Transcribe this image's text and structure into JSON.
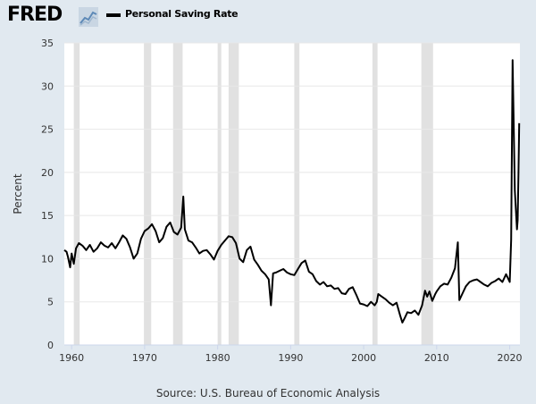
{
  "header": {
    "logo_text": "FRED",
    "logo_icon": "line-chart-icon",
    "legend_label": "Personal Saving Rate"
  },
  "footer": {
    "source": "Source: U.S. Bureau of Economic Analysis"
  },
  "colors": {
    "page_background": "#e1e9f0",
    "plot_background": "#ffffff",
    "recession_shade": "#e1e1e1",
    "series": "#000000",
    "grid": "#e8e8e8"
  },
  "chart_data": {
    "type": "line",
    "title": "",
    "xlabel": "",
    "ylabel": "Percent",
    "xlim": [
      1959.0,
      2021.4
    ],
    "ylim": [
      0,
      35
    ],
    "x_ticks": [
      1960,
      1970,
      1980,
      1990,
      2000,
      2010,
      2020
    ],
    "x_tick_labels": [
      "1960",
      "1970",
      "1980",
      "1990",
      "2000",
      "2010",
      "2020"
    ],
    "y_ticks": [
      0,
      5,
      10,
      15,
      20,
      25,
      30,
      35
    ],
    "y_tick_labels": [
      "0",
      "5",
      "10",
      "15",
      "20",
      "25",
      "30",
      "35"
    ],
    "grid": "horizontal",
    "legend": "top-left",
    "recessions": [
      [
        1960.3,
        1961.1
      ],
      [
        1969.9,
        1970.9
      ],
      [
        1973.9,
        1975.2
      ],
      [
        1980.0,
        1980.5
      ],
      [
        1981.5,
        1982.9
      ],
      [
        1990.5,
        1991.2
      ],
      [
        2001.2,
        2001.9
      ],
      [
        2007.9,
        2009.5
      ]
    ],
    "series": [
      {
        "name": "Personal Saving Rate",
        "x": [
          1959.0,
          1959.3,
          1959.5,
          1959.8,
          1960.0,
          1960.3,
          1960.6,
          1961.0,
          1961.5,
          1962.0,
          1962.5,
          1963.0,
          1963.5,
          1964.0,
          1964.5,
          1965.0,
          1965.5,
          1966.0,
          1966.5,
          1967.0,
          1967.5,
          1968.0,
          1968.5,
          1969.0,
          1969.5,
          1970.0,
          1970.5,
          1971.0,
          1971.5,
          1972.0,
          1972.5,
          1973.0,
          1973.5,
          1974.0,
          1974.5,
          1975.0,
          1975.3,
          1975.5,
          1976.0,
          1976.5,
          1977.0,
          1977.5,
          1978.0,
          1978.5,
          1979.0,
          1979.5,
          1980.0,
          1980.5,
          1981.0,
          1981.5,
          1982.0,
          1982.5,
          1983.0,
          1983.5,
          1984.0,
          1984.5,
          1985.0,
          1985.5,
          1986.0,
          1986.5,
          1987.0,
          1987.3,
          1987.6,
          1988.0,
          1988.5,
          1989.0,
          1989.5,
          1990.0,
          1990.5,
          1991.0,
          1991.5,
          1992.0,
          1992.5,
          1993.0,
          1993.5,
          1994.0,
          1994.5,
          1995.0,
          1995.5,
          1996.0,
          1996.5,
          1997.0,
          1997.5,
          1998.0,
          1998.5,
          1999.0,
          1999.5,
          2000.0,
          2000.5,
          2001.0,
          2001.5,
          2001.8,
          2002.0,
          2002.5,
          2003.0,
          2003.5,
          2004.0,
          2004.5,
          2005.0,
          2005.3,
          2005.6,
          2006.0,
          2006.5,
          2007.0,
          2007.5,
          2008.0,
          2008.4,
          2008.7,
          2009.0,
          2009.4,
          2009.8,
          2010.0,
          2010.5,
          2011.0,
          2011.5,
          2012.0,
          2012.5,
          2012.9,
          2013.1,
          2013.5,
          2014.0,
          2014.5,
          2015.0,
          2015.5,
          2016.0,
          2016.5,
          2017.0,
          2017.5,
          2018.0,
          2018.5,
          2019.0,
          2019.5,
          2020.0,
          2020.2,
          2020.4,
          2020.7,
          2021.0,
          2021.1,
          2021.2,
          2021.3
        ],
        "values": [
          11.0,
          10.8,
          10.2,
          9.0,
          10.6,
          9.4,
          11.2,
          11.8,
          11.5,
          11.0,
          11.6,
          10.8,
          11.2,
          11.9,
          11.5,
          11.3,
          11.8,
          11.2,
          11.9,
          12.7,
          12.3,
          11.3,
          10.0,
          10.6,
          12.3,
          13.2,
          13.5,
          14.0,
          13.2,
          11.9,
          12.4,
          13.7,
          14.2,
          13.1,
          12.8,
          13.6,
          17.2,
          13.4,
          12.1,
          11.9,
          11.3,
          10.6,
          10.9,
          11.0,
          10.5,
          9.9,
          10.9,
          11.6,
          12.1,
          12.6,
          12.5,
          11.8,
          10.0,
          9.6,
          11.0,
          11.4,
          9.9,
          9.3,
          8.6,
          8.2,
          7.6,
          4.6,
          8.3,
          8.4,
          8.6,
          8.8,
          8.4,
          8.2,
          8.1,
          8.8,
          9.5,
          9.8,
          8.5,
          8.2,
          7.4,
          7.0,
          7.3,
          6.8,
          6.9,
          6.5,
          6.6,
          6.0,
          5.9,
          6.5,
          6.7,
          5.8,
          4.8,
          4.7,
          4.5,
          5.0,
          4.6,
          5.0,
          5.9,
          5.6,
          5.3,
          4.9,
          4.6,
          4.9,
          3.4,
          2.6,
          3.1,
          3.8,
          3.7,
          4.0,
          3.5,
          4.6,
          6.3,
          5.6,
          6.2,
          5.1,
          5.9,
          6.2,
          6.8,
          7.1,
          7.0,
          7.8,
          8.9,
          11.9,
          5.2,
          5.9,
          6.8,
          7.3,
          7.5,
          7.6,
          7.3,
          7.0,
          6.8,
          7.2,
          7.4,
          7.7,
          7.3,
          8.2,
          7.3,
          12.2,
          33.0,
          17.9,
          13.4,
          14.5,
          19.9,
          25.7
        ]
      }
    ]
  }
}
